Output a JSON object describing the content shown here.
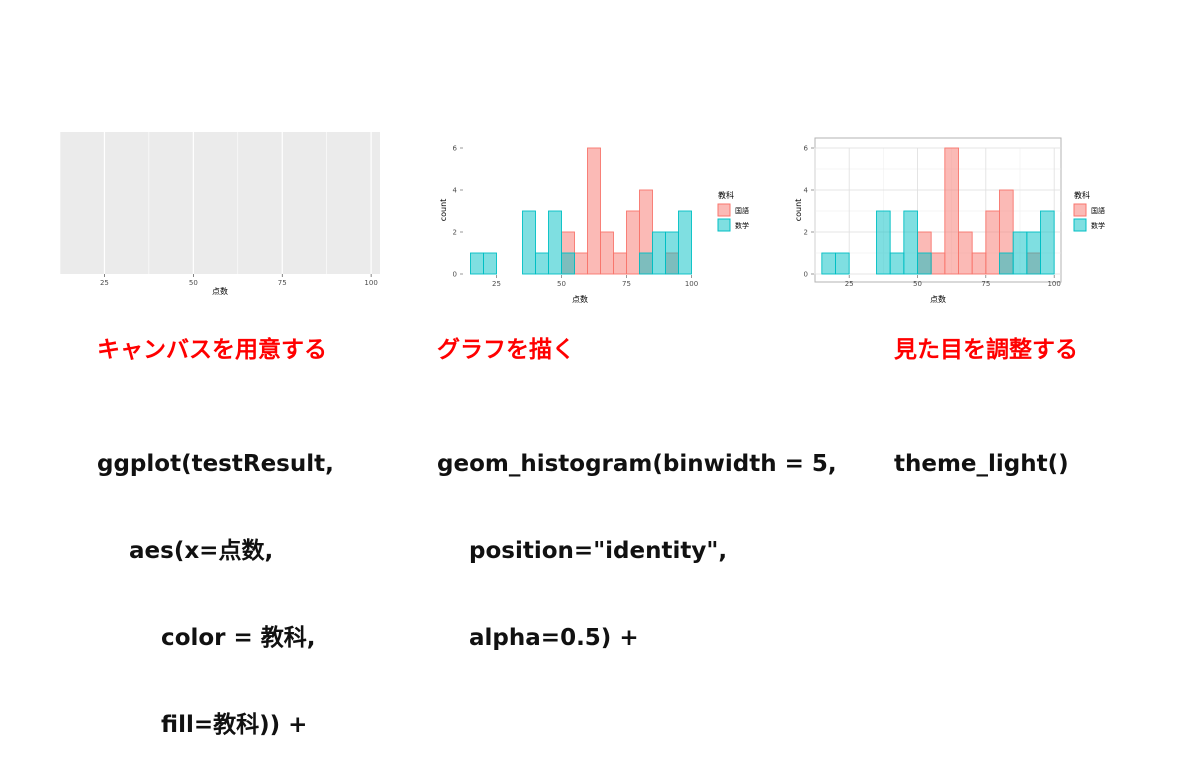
{
  "colors": {
    "heading": "#ff0000",
    "kokugo": "#f8766d",
    "sugaku": "#00bfc4",
    "panel_bg": "#ebebeb"
  },
  "panels": [
    {
      "heading": "キャンバスを用意する",
      "code": [
        "ggplot(testResult,",
        "    aes(x=点数,",
        "        color = 教科,",
        "        fill=教科)) +"
      ]
    },
    {
      "heading": "グラフを描く",
      "code": [
        "geom_histogram(binwidth = 5,",
        "    position=\"identity\",",
        "    alpha=0.5) +"
      ]
    },
    {
      "heading": "見た目を調整する",
      "code": [
        "theme_light()"
      ]
    }
  ],
  "chart_data": [
    {
      "type": "blank",
      "xlabel": "点数",
      "x_ticks": [
        25,
        50,
        75,
        100
      ],
      "xlim": [
        12.5,
        102.5
      ],
      "theme": "grey"
    },
    {
      "type": "histogram",
      "xlabel": "点数",
      "ylabel": "count",
      "x_ticks": [
        25,
        50,
        75,
        100
      ],
      "y_ticks": [
        0,
        2,
        4,
        6
      ],
      "xlim": [
        12.5,
        102.5
      ],
      "ylim": [
        0,
        6
      ],
      "binwidth": 5,
      "legend_title": "教科",
      "legend_position": "right",
      "theme": "blank",
      "bins_start": [
        15,
        20,
        25,
        30,
        35,
        40,
        45,
        50,
        55,
        60,
        65,
        70,
        75,
        80,
        85,
        90,
        95
      ],
      "series": [
        {
          "name": "国語",
          "color": "#f8766d",
          "values": [
            0,
            0,
            0,
            0,
            0,
            0,
            0,
            2,
            1,
            6,
            2,
            1,
            3,
            4,
            0,
            1,
            0
          ]
        },
        {
          "name": "数学",
          "color": "#00bfc4",
          "values": [
            1,
            1,
            0,
            0,
            3,
            1,
            3,
            1,
            0,
            0,
            0,
            0,
            0,
            1,
            2,
            2,
            3
          ]
        }
      ]
    },
    {
      "type": "histogram",
      "xlabel": "点数",
      "ylabel": "count",
      "x_ticks": [
        25,
        50,
        75,
        100
      ],
      "y_ticks": [
        0,
        2,
        4,
        6
      ],
      "xlim": [
        12.5,
        102.5
      ],
      "ylim": [
        0,
        6
      ],
      "binwidth": 5,
      "legend_title": "教科",
      "legend_position": "right",
      "theme": "light",
      "bins_start": [
        15,
        20,
        25,
        30,
        35,
        40,
        45,
        50,
        55,
        60,
        65,
        70,
        75,
        80,
        85,
        90,
        95
      ],
      "series": [
        {
          "name": "国語",
          "color": "#f8766d",
          "values": [
            0,
            0,
            0,
            0,
            0,
            0,
            0,
            2,
            1,
            6,
            2,
            1,
            3,
            4,
            0,
            1,
            0
          ]
        },
        {
          "name": "数学",
          "color": "#00bfc4",
          "values": [
            1,
            1,
            0,
            0,
            3,
            1,
            3,
            1,
            0,
            0,
            0,
            0,
            0,
            1,
            2,
            2,
            3
          ]
        }
      ]
    }
  ]
}
